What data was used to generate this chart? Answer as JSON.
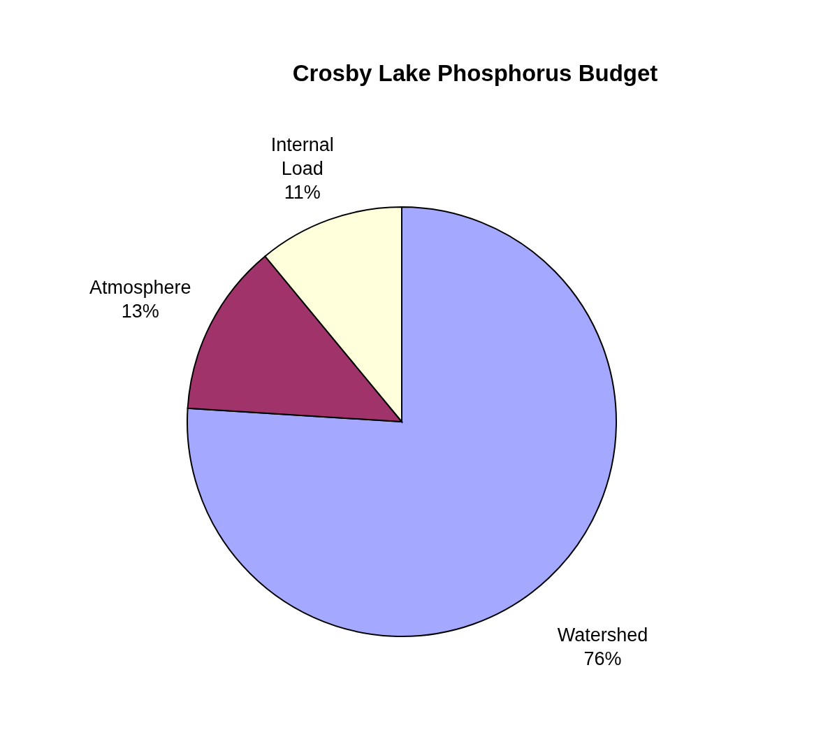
{
  "chart_data": {
    "type": "pie",
    "title": "Crosby Lake Phosphorus Budget",
    "categories": [
      "Watershed",
      "Atmosphere",
      "Internal Load"
    ],
    "values": [
      76,
      13,
      11
    ],
    "value_labels": [
      "76%",
      "13%",
      "11%"
    ],
    "colors": [
      "#a5a8ff",
      "#a0346a",
      "#ffffdc"
    ],
    "legend": false
  }
}
